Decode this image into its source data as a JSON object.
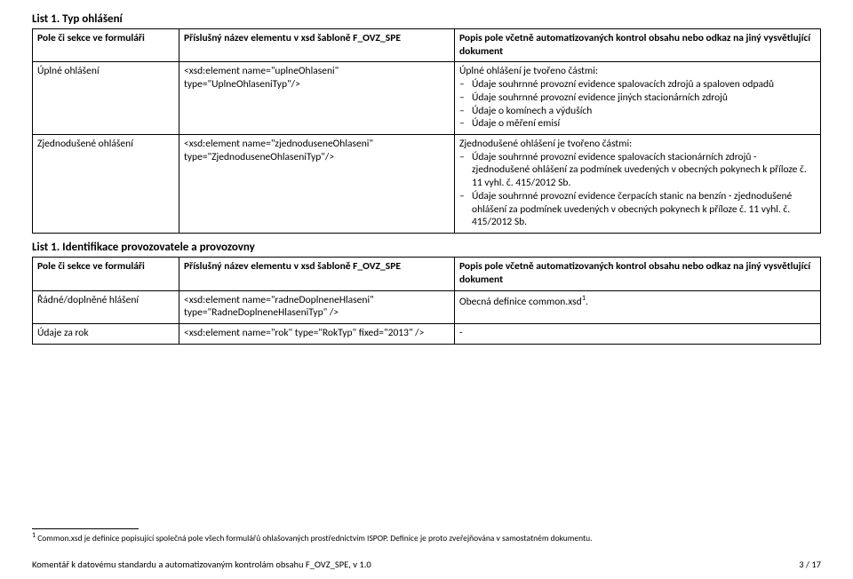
{
  "list1": {
    "title": "List 1. Typ ohlášení",
    "headers": {
      "col1": "Pole či sekce ve formuláři",
      "col2": "Příslušný název elementu v xsd šabloně F_OVZ_SPE",
      "col3": "Popis pole včetně automatizovaných kontrol obsahu nebo odkaz na jiný vysvětlující dokument"
    },
    "row1": {
      "col1": "Úplné ohlášení",
      "col2": "<xsd:element name=\"uplneOhlaseni\" type=\"UplneOhlaseniTyp\"/>",
      "col3_intro": "Úplné ohlášení je tvořeno částmi:",
      "col3_items": [
        "Údaje souhrnné provozní evidence spalovacích zdrojů a spaloven odpadů",
        "Údaje souhrnné provozní evidence jiných stacionárních zdrojů",
        "Údaje o komínech a výduších",
        "Údaje o měření emisí"
      ]
    },
    "row2": {
      "col1": "Zjednodušené ohlášení",
      "col2": "<xsd:element name=\"zjednoduseneOhlaseni\" type=\"ZjednoduseneOhlaseniTyp\"/>",
      "col3_intro": "Zjednodušené ohlášení je tvořeno částmi:",
      "col3_items": [
        "Údaje souhrnné provozní evidence spalovacích stacionárních zdrojů - zjednodušené ohlášení za podmínek uvedených v obecných pokynech k příloze č. 11 vyhl. č. 415/2012 Sb.",
        "Údaje souhrnné provozní evidence čerpacích stanic na benzín - zjednodušené ohlášení za podmínek uvedených v obecných pokynech k příloze č. 11 vyhl. č. 415/2012 Sb."
      ]
    }
  },
  "list2": {
    "title": "List 1. Identifikace provozovatele a provozovny",
    "headers": {
      "col1": "Pole či sekce ve formuláři",
      "col2": "Příslušný název elementu v xsd šabloně F_OVZ_SPE",
      "col3": "Popis pole včetně automatizovaných kontrol obsahu nebo odkaz na jiný vysvětlující dokument"
    },
    "row1": {
      "col1": "Řádné/doplněné hlášení",
      "col2": "<xsd:element name=\"radneDoplneneHlaseni\" type=\"RadneDoplneneHlaseniTyp\" />",
      "col3_pre": "Obecná definice common.xsd",
      "col3_post": "."
    },
    "row2": {
      "col1": "Údaje za rok",
      "col2": "<xsd:element name=\"rok\" type=\"RokTyp\" fixed=\"2013\" />",
      "col3": "-"
    }
  },
  "footnote": {
    "marker": "1",
    "text": " Common.xsd je definice popisující společná pole všech formulářů ohlašovaných prostřednictvím ISPOP. Definice je proto zveřejňována v samostatném dokumentu."
  },
  "footer": {
    "left": "Komentář k datovému standardu a automatizovaným kontrolám obsahu  F_OVZ_SPE, v 1.0",
    "right": "3 / 17"
  }
}
